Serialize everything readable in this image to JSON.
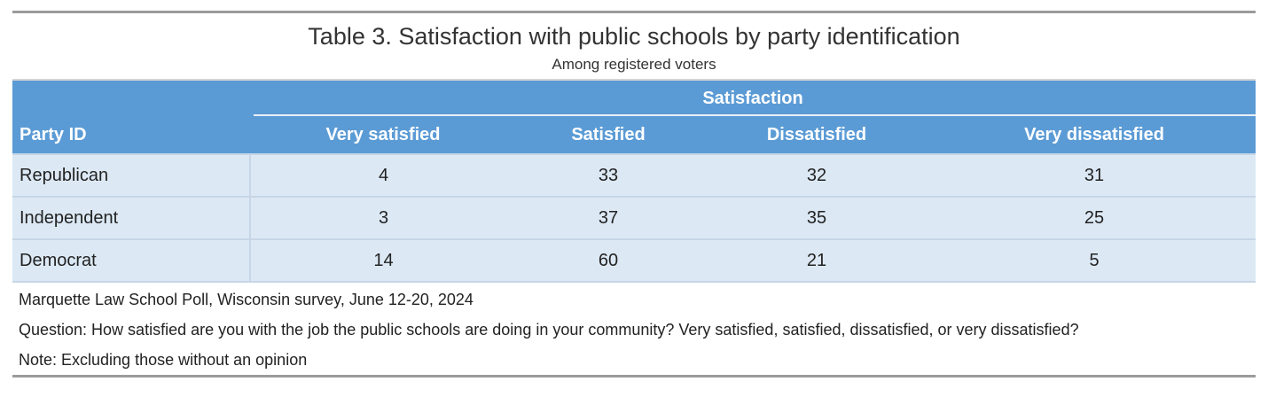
{
  "title": "Table 3. Satisfaction with public schools by party identification",
  "subtitle": "Among registered voters",
  "spanner": "Satisfaction",
  "stub_header": "Party ID",
  "columns": [
    "Very satisfied",
    "Satisfied",
    "Dissatisfied",
    "Very dissatisfied"
  ],
  "rows": [
    {
      "label": "Republican",
      "values": [
        "4",
        "33",
        "32",
        "31"
      ]
    },
    {
      "label": "Independent",
      "values": [
        "3",
        "37",
        "35",
        "25"
      ]
    },
    {
      "label": "Democrat",
      "values": [
        "14",
        "60",
        "21",
        "5"
      ]
    }
  ],
  "notes": [
    "Marquette Law School Poll, Wisconsin survey, June 12-20, 2024",
    "Question: How satisfied are you with the job the public schools are doing in your community? Very satisfied, satisfied, dissatisfied, or very dissatisfied?",
    "Note: Excluding those without an opinion"
  ],
  "colors": {
    "header_bg": "#5b9bd5",
    "body_bg": "#dce9f5",
    "rule": "#9b9b9b"
  }
}
